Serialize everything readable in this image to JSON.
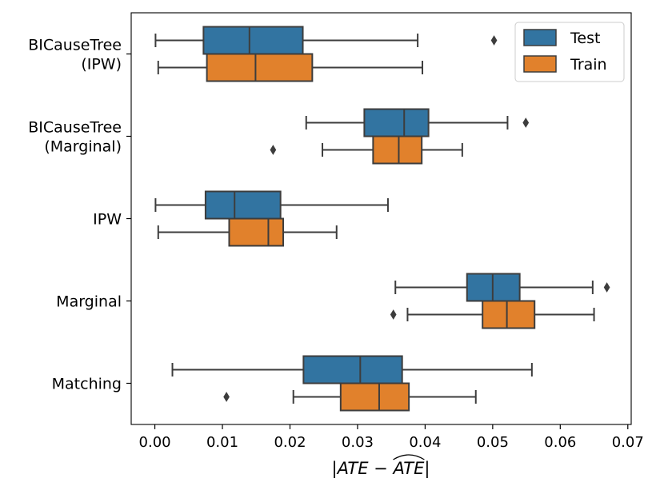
{
  "chart_data": {
    "type": "boxplot",
    "orientation": "horizontal",
    "xlabel_parts": {
      "left": "|ATE − ",
      "hat": "ATE",
      "right": "|"
    },
    "xlim": [
      -0.0035,
      0.0705
    ],
    "xticks": [
      0.0,
      0.01,
      0.02,
      0.03,
      0.04,
      0.05,
      0.06,
      0.07
    ],
    "xtick_labels": [
      "0.00",
      "0.01",
      "0.02",
      "0.03",
      "0.04",
      "0.05",
      "0.06",
      "0.07"
    ],
    "categories": [
      {
        "lines": [
          "BICauseTree",
          "(IPW)"
        ]
      },
      {
        "lines": [
          "BICauseTree",
          "(Marginal)"
        ]
      },
      {
        "lines": [
          "IPW"
        ]
      },
      {
        "lines": [
          "Marginal"
        ]
      },
      {
        "lines": [
          "Matching"
        ]
      }
    ],
    "series": [
      {
        "name": "Test",
        "color": "#3274a1",
        "boxes": [
          {
            "whislo": 0.0001,
            "q1": 0.0072,
            "med": 0.014,
            "q3": 0.0219,
            "whishi": 0.0389,
            "fliers": [
              0.0502
            ]
          },
          {
            "whislo": 0.0224,
            "q1": 0.031,
            "med": 0.0369,
            "q3": 0.0405,
            "whishi": 0.0522,
            "fliers": [
              0.0549
            ]
          },
          {
            "whislo": 0.0001,
            "q1": 0.0075,
            "med": 0.0118,
            "q3": 0.0186,
            "whishi": 0.0345,
            "fliers": []
          },
          {
            "whislo": 0.0356,
            "q1": 0.0462,
            "med": 0.05,
            "q3": 0.054,
            "whishi": 0.0648,
            "fliers": [
              0.0669
            ]
          },
          {
            "whislo": 0.0026,
            "q1": 0.022,
            "med": 0.0304,
            "q3": 0.0366,
            "whishi": 0.0558,
            "fliers": []
          }
        ]
      },
      {
        "name": "Train",
        "color": "#e1812c",
        "boxes": [
          {
            "whislo": 0.0005,
            "q1": 0.0077,
            "med": 0.0149,
            "q3": 0.0233,
            "whishi": 0.0396,
            "fliers": []
          },
          {
            "whislo": 0.0248,
            "q1": 0.0323,
            "med": 0.0361,
            "q3": 0.0395,
            "whishi": 0.0455,
            "fliers": [
              0.0175
            ]
          },
          {
            "whislo": 0.0005,
            "q1": 0.011,
            "med": 0.0168,
            "q3": 0.019,
            "whishi": 0.0269,
            "fliers": []
          },
          {
            "whislo": 0.0374,
            "q1": 0.0485,
            "med": 0.0521,
            "q3": 0.0562,
            "whishi": 0.065,
            "fliers": [
              0.0353
            ]
          },
          {
            "whislo": 0.0205,
            "q1": 0.0275,
            "med": 0.0332,
            "q3": 0.0376,
            "whishi": 0.0475,
            "fliers": [
              0.0106
            ]
          }
        ]
      }
    ],
    "legend": {
      "location": "upper right",
      "entries": [
        "Test",
        "Train"
      ]
    }
  }
}
